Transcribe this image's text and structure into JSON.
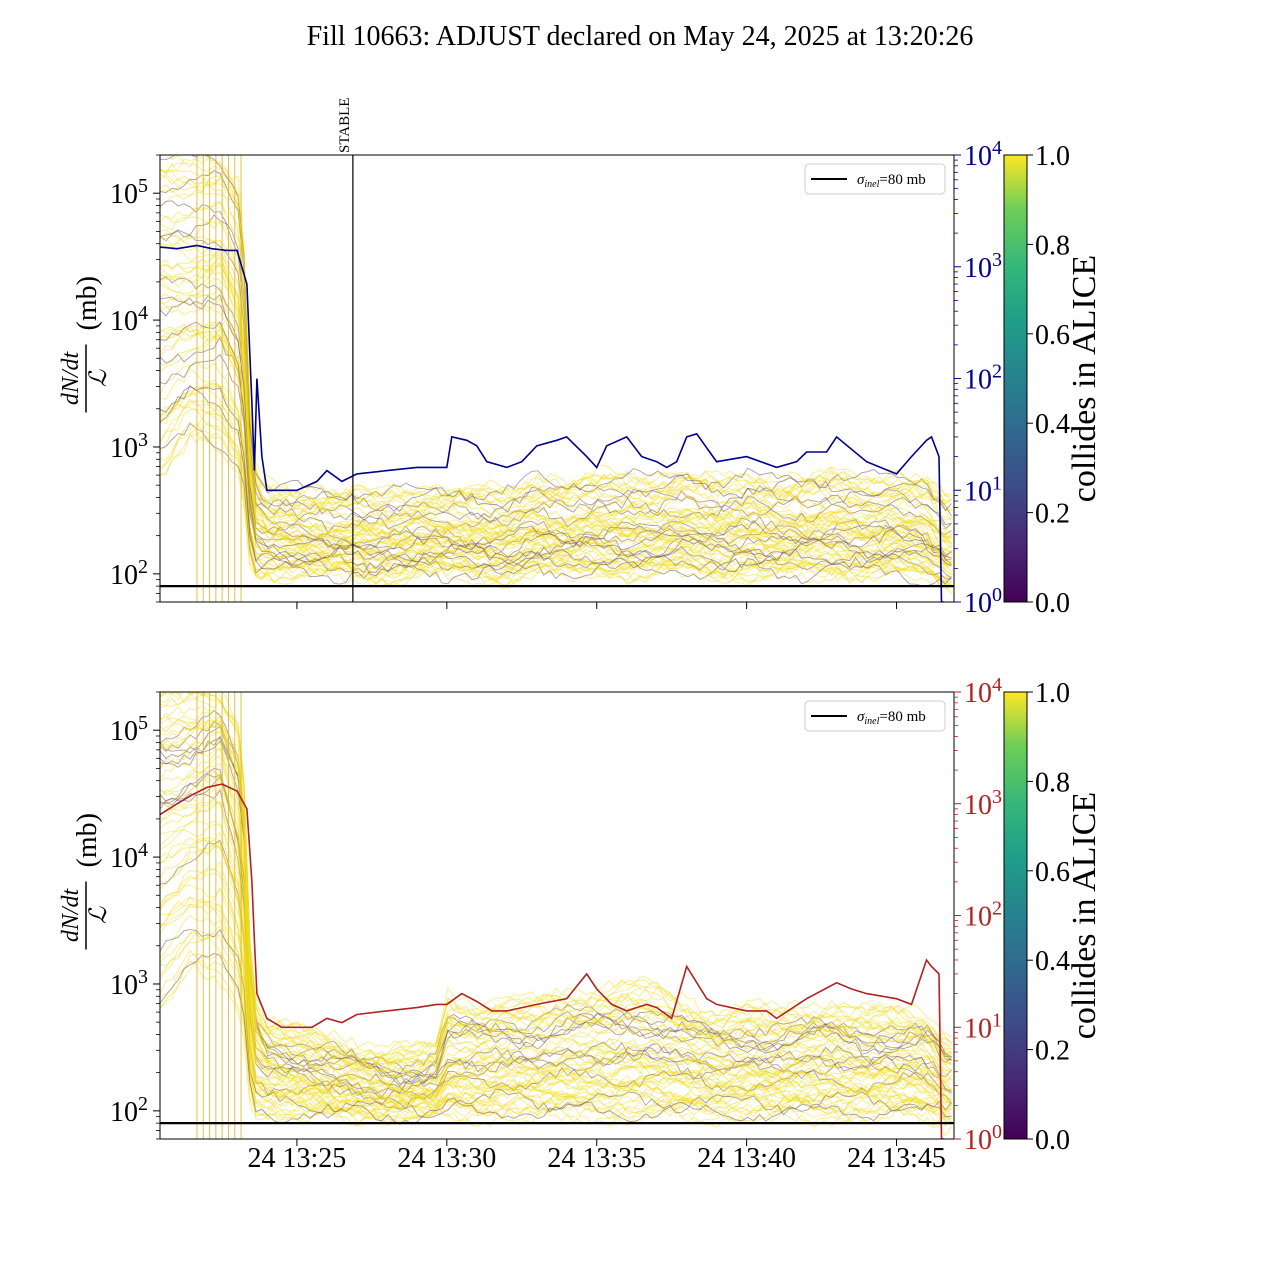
{
  "figure": {
    "title": "Fill 10663: ADJUST declared on May 24, 2025 at 13:20:26"
  },
  "chart_data": [
    {
      "type": "line",
      "panel": "top",
      "ylabel": "dN/dt / ℒ (mb)",
      "y_scale": "log",
      "ylim": [
        60,
        200000
      ],
      "yticks": [
        {
          "value": 100,
          "mant": "10",
          "exp": "2"
        },
        {
          "value": 1000,
          "mant": "10",
          "exp": "3"
        },
        {
          "value": 10000,
          "mant": "10",
          "exp": "4"
        },
        {
          "value": 100000,
          "mant": "10",
          "exp": "5"
        }
      ],
      "x_range": [
        "13:20:26",
        "13:46:55"
      ],
      "xticks": [],
      "annotation": {
        "label": "STABLE",
        "time": "13:26:52"
      },
      "hline": {
        "value": 80,
        "legend": "σinel=80 mb",
        "sigma": "σ",
        "sub": "inel",
        "rest": "=80 mb"
      },
      "band": {
        "description": "per-bunch normalized rate curves coloured by 'collides in ALICE'",
        "times": [
          "13:20:26",
          "13:21:26",
          "13:22:26",
          "13:23:10",
          "13:23:30",
          "13:24:00",
          "13:25:00",
          "13:26:00",
          "13:27:00",
          "13:28:00",
          "13:29:00",
          "13:30:00",
          "13:31:00",
          "13:32:00",
          "13:33:00",
          "13:34:00",
          "13:35:00",
          "13:36:00",
          "13:37:00",
          "13:38:00",
          "13:39:00",
          "13:40:00",
          "13:41:00",
          "13:42:00",
          "13:43:00",
          "13:44:00",
          "13:45:00",
          "13:46:00",
          "13:46:40"
        ],
        "center": [
          20000,
          18000,
          22000,
          9000,
          300,
          220,
          200,
          190,
          200,
          195,
          200,
          205,
          200,
          195,
          230,
          210,
          240,
          230,
          220,
          250,
          230,
          240,
          220,
          230,
          250,
          220,
          230,
          220,
          160
        ],
        "upper": [
          200000,
          200000,
          200000,
          120000,
          700,
          500,
          450,
          450,
          460,
          450,
          460,
          470,
          470,
          460,
          560,
          520,
          620,
          600,
          560,
          640,
          560,
          600,
          560,
          580,
          650,
          560,
          600,
          560,
          400
        ],
        "lower": [
          500,
          1000,
          800,
          500,
          90,
          100,
          95,
          95,
          95,
          90,
          95,
          95,
          95,
          90,
          100,
          95,
          100,
          95,
          95,
          100,
          95,
          95,
          90,
          95,
          100,
          95,
          95,
          90,
          80
        ]
      },
      "secondary_axis": {
        "color": "#00008b",
        "ylim": [
          1,
          10000
        ],
        "y_scale": "log",
        "yticks": [
          {
            "value": 1,
            "mant": "10",
            "exp": "0"
          },
          {
            "value": 10,
            "mant": "10",
            "exp": "1"
          },
          {
            "value": 100,
            "mant": "10",
            "exp": "2"
          },
          {
            "value": 1000,
            "mant": "10",
            "exp": "3"
          },
          {
            "value": 10000,
            "mant": "10",
            "exp": "4"
          }
        ],
        "series": {
          "times": [
            "13:20:26",
            "13:21:00",
            "13:21:40",
            "13:22:10",
            "13:22:40",
            "13:23:00",
            "13:23:20",
            "13:23:30",
            "13:23:35",
            "13:23:40",
            "13:23:50",
            "13:24:00",
            "13:24:30",
            "13:25:00",
            "13:25:40",
            "13:26:00",
            "13:26:30",
            "13:27:00",
            "13:28:00",
            "13:29:00",
            "13:30:00",
            "13:30:10",
            "13:30:40",
            "13:31:00",
            "13:31:20",
            "13:32:00",
            "13:32:30",
            "13:33:00",
            "13:33:40",
            "13:34:00",
            "13:34:40",
            "13:35:00",
            "13:35:20",
            "13:36:00",
            "13:36:30",
            "13:37:00",
            "13:37:20",
            "13:37:40",
            "13:38:00",
            "13:38:20",
            "13:39:00",
            "13:40:00",
            "13:41:00",
            "13:41:40",
            "13:42:00",
            "13:42:40",
            "13:43:00",
            "13:44:00",
            "13:45:00",
            "13:45:30",
            "13:46:00",
            "13:46:10",
            "13:46:25",
            "13:46:30",
            "13:46:35"
          ],
          "values": [
            1500,
            1450,
            1550,
            1450,
            1400,
            1400,
            700,
            60,
            15,
            100,
            20,
            10,
            10,
            10,
            12,
            15,
            12,
            14,
            15,
            16,
            16,
            30,
            28,
            25,
            18,
            16,
            18,
            25,
            28,
            30,
            20,
            16,
            25,
            30,
            20,
            18,
            16,
            18,
            30,
            32,
            18,
            20,
            16,
            18,
            22,
            22,
            30,
            18,
            14,
            20,
            28,
            30,
            20,
            1,
            1
          ]
        }
      },
      "colorbar": {
        "label": "collides in ALICE",
        "ticks": [
          "0.0",
          "0.2",
          "0.4",
          "0.6",
          "0.8",
          "1.0"
        ]
      }
    },
    {
      "type": "line",
      "panel": "bottom",
      "ylabel": "dN/dt / ℒ (mb)",
      "y_scale": "log",
      "ylim": [
        60,
        200000
      ],
      "yticks": [
        {
          "value": 100,
          "mant": "10",
          "exp": "2"
        },
        {
          "value": 1000,
          "mant": "10",
          "exp": "3"
        },
        {
          "value": 10000,
          "mant": "10",
          "exp": "4"
        },
        {
          "value": 100000,
          "mant": "10",
          "exp": "5"
        }
      ],
      "x_range": [
        "13:20:26",
        "13:46:55"
      ],
      "xticks": [
        "24 13:25",
        "24 13:30",
        "24 13:35",
        "24 13:40",
        "24 13:45"
      ],
      "hline": {
        "value": 80,
        "legend": "σinel=80 mb",
        "sigma": "σ",
        "sub": "inel",
        "rest": "=80 mb"
      },
      "band": {
        "description": "per-bunch normalized rate curves coloured by 'collides in ALICE'",
        "times": [
          "13:20:26",
          "13:21:26",
          "13:22:26",
          "13:23:10",
          "13:23:30",
          "13:24:00",
          "13:25:00",
          "13:26:00",
          "13:27:00",
          "13:28:00",
          "13:29:00",
          "13:29:40",
          "13:30:00",
          "13:31:00",
          "13:32:00",
          "13:33:00",
          "13:34:00",
          "13:35:00",
          "13:36:00",
          "13:37:00",
          "13:38:00",
          "13:39:00",
          "13:40:00",
          "13:41:00",
          "13:42:00",
          "13:43:00",
          "13:44:00",
          "13:45:00",
          "13:46:00",
          "13:46:40"
        ],
        "center": [
          25000,
          30000,
          40000,
          10000,
          300,
          220,
          200,
          170,
          160,
          150,
          150,
          150,
          220,
          230,
          250,
          240,
          250,
          260,
          280,
          260,
          240,
          220,
          230,
          220,
          240,
          250,
          230,
          230,
          220,
          160
        ],
        "upper": [
          200000,
          200000,
          200000,
          120000,
          900,
          500,
          420,
          380,
          330,
          300,
          300,
          320,
          800,
          700,
          750,
          700,
          850,
          900,
          1000,
          900,
          700,
          600,
          650,
          600,
          650,
          700,
          600,
          600,
          560,
          400
        ],
        "lower": [
          600,
          1200,
          1000,
          600,
          90,
          95,
          90,
          90,
          90,
          90,
          90,
          90,
          95,
          90,
          95,
          90,
          90,
          90,
          90,
          90,
          90,
          90,
          90,
          90,
          90,
          90,
          90,
          90,
          90,
          80
        ]
      },
      "secondary_axis": {
        "color": "#b22222",
        "ylim": [
          1,
          10000
        ],
        "y_scale": "log",
        "yticks": [
          {
            "value": 1,
            "mant": "10",
            "exp": "0"
          },
          {
            "value": 10,
            "mant": "10",
            "exp": "1"
          },
          {
            "value": 100,
            "mant": "10",
            "exp": "2"
          },
          {
            "value": 1000,
            "mant": "10",
            "exp": "3"
          },
          {
            "value": 10000,
            "mant": "10",
            "exp": "4"
          }
        ],
        "series": {
          "times": [
            "13:20:26",
            "13:21:00",
            "13:21:30",
            "13:22:00",
            "13:22:30",
            "13:23:00",
            "13:23:20",
            "13:23:30",
            "13:23:35",
            "13:23:40",
            "13:24:00",
            "13:24:30",
            "13:25:00",
            "13:25:30",
            "13:26:00",
            "13:26:30",
            "13:27:00",
            "13:28:00",
            "13:29:00",
            "13:29:40",
            "13:30:00",
            "13:30:30",
            "13:31:00",
            "13:31:30",
            "13:32:00",
            "13:33:00",
            "13:34:00",
            "13:34:40",
            "13:35:00",
            "13:35:30",
            "13:36:00",
            "13:36:40",
            "13:37:00",
            "13:37:30",
            "13:38:00",
            "13:38:40",
            "13:39:00",
            "13:40:00",
            "13:40:40",
            "13:41:00",
            "13:42:00",
            "13:43:00",
            "13:43:30",
            "13:44:00",
            "13:45:00",
            "13:45:30",
            "13:46:00",
            "13:46:10",
            "13:46:25",
            "13:46:30",
            "13:46:35"
          ],
          "values": [
            800,
            1000,
            1200,
            1400,
            1500,
            1300,
            900,
            200,
            60,
            20,
            12,
            10,
            10,
            10,
            12,
            11,
            13,
            14,
            15,
            16,
            16,
            20,
            17,
            14,
            14,
            16,
            18,
            30,
            22,
            16,
            14,
            16,
            15,
            12,
            35,
            18,
            16,
            14,
            14,
            12,
            18,
            25,
            22,
            20,
            18,
            16,
            40,
            35,
            30,
            1,
            1
          ]
        }
      },
      "colorbar": {
        "label": "collides in ALICE",
        "ticks": [
          "0.0",
          "0.2",
          "0.4",
          "0.6",
          "0.8",
          "1.0"
        ]
      }
    }
  ]
}
